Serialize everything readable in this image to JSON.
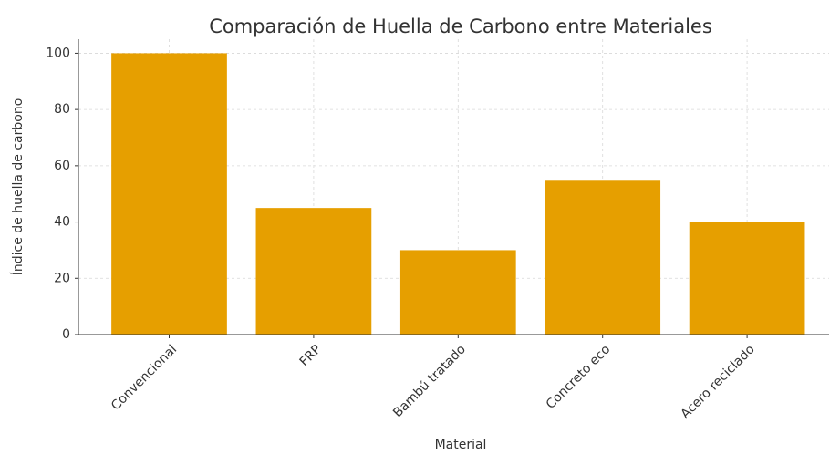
{
  "chart_data": {
    "type": "bar",
    "title": "Comparación de Huella de Carbono entre Materiales",
    "x_label": "Material",
    "y_label": "Índice de huella de carbono",
    "categories": [
      "Convencional",
      "FRP",
      "Bambú tratado",
      "Concreto eco",
      "Acero reciclado"
    ],
    "values": [
      100,
      45,
      30,
      55,
      40
    ],
    "color": "#e69f00",
    "ylim": [
      0,
      105
    ],
    "yticks": [
      0,
      20,
      40,
      60,
      80,
      100
    ],
    "grid": true
  }
}
